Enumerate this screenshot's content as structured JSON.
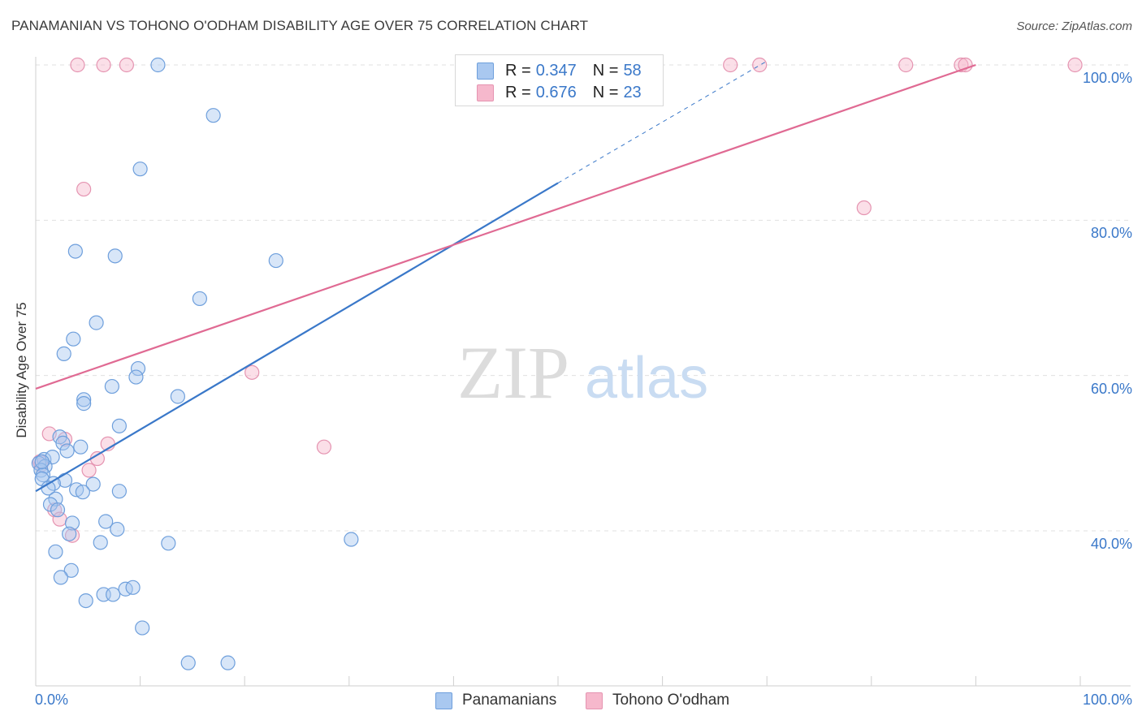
{
  "title": "PANAMANIAN VS TOHONO O'ODHAM DISABILITY AGE OVER 75 CORRELATION CHART",
  "source": "Source: ZipAtlas.com",
  "watermark": {
    "zip": "ZIP",
    "atlas": "atlas"
  },
  "legend": {
    "row1": {
      "r_label": "R =",
      "r_value": "0.347",
      "n_label": "N =",
      "n_value": "58"
    },
    "row2": {
      "r_label": "R =",
      "r_value": "0.676",
      "n_label": "N =",
      "n_value": "23"
    }
  },
  "bottom_legend": {
    "series1": "Panamanians",
    "series2": "Tohono O'odham"
  },
  "chart_data": {
    "type": "scatter",
    "title": "PANAMANIAN VS TOHONO O'ODHAM DISABILITY AGE OVER 75 CORRELATION CHART",
    "xlabel": "",
    "ylabel": "Disability Age Over 75",
    "xlim": [
      0,
      100
    ],
    "ylim": [
      22.5,
      102
    ],
    "x_tick_labels": [
      "0.0%",
      "100.0%"
    ],
    "y_tick_labels": [
      "40.0%",
      "60.0%",
      "80.0%",
      "100.0%"
    ],
    "y_ticks": [
      40,
      60,
      80,
      100
    ],
    "grid": true,
    "legend_position": "top-center",
    "colors": {
      "blue": "#3a78c9",
      "pink": "#e06a93",
      "blue_fill": "#a9c8f0",
      "pink_fill": "#f6b8cc"
    },
    "series": [
      {
        "name": "Panamanians",
        "color": "#3a78c9",
        "r": 0.347,
        "n": 58,
        "trend": {
          "x": [
            0,
            50
          ],
          "y": [
            45.1,
            84.8
          ],
          "dashed_to": {
            "x": 70,
            "y": 100.5
          }
        },
        "points": [
          [
            11.7,
            100
          ],
          [
            41.7,
            100
          ],
          [
            17,
            93.5
          ],
          [
            10,
            86.6
          ],
          [
            3.8,
            76
          ],
          [
            7.6,
            75.4
          ],
          [
            23,
            74.8
          ],
          [
            15.7,
            69.9
          ],
          [
            5.8,
            66.8
          ],
          [
            3.6,
            64.7
          ],
          [
            2.7,
            62.8
          ],
          [
            9.8,
            60.9
          ],
          [
            9.6,
            59.8
          ],
          [
            7.3,
            58.6
          ],
          [
            13.6,
            57.3
          ],
          [
            4.6,
            56.9
          ],
          [
            4.6,
            56.4
          ],
          [
            8,
            53.5
          ],
          [
            2.3,
            52.1
          ],
          [
            2.6,
            51.3
          ],
          [
            4.3,
            50.8
          ],
          [
            3,
            50.3
          ],
          [
            0.8,
            49.2
          ],
          [
            1.6,
            49.5
          ],
          [
            0.3,
            48.7
          ],
          [
            0.9,
            48.3
          ],
          [
            0.5,
            47.8
          ],
          [
            0.7,
            47.2
          ],
          [
            0.6,
            46.7
          ],
          [
            2.8,
            46.5
          ],
          [
            1.7,
            46.1
          ],
          [
            5.5,
            46
          ],
          [
            1.2,
            45.5
          ],
          [
            3.9,
            45.3
          ],
          [
            4.5,
            45
          ],
          [
            8,
            45.1
          ],
          [
            1.9,
            44.1
          ],
          [
            1.4,
            43.4
          ],
          [
            2.1,
            42.7
          ],
          [
            3.5,
            41
          ],
          [
            6.7,
            41.2
          ],
          [
            7.8,
            40.2
          ],
          [
            3.2,
            39.6
          ],
          [
            6.2,
            38.5
          ],
          [
            12.7,
            38.4
          ],
          [
            30.2,
            38.9
          ],
          [
            1.9,
            37.3
          ],
          [
            3.4,
            34.9
          ],
          [
            2.4,
            34
          ],
          [
            4.8,
            31
          ],
          [
            6.5,
            31.8
          ],
          [
            7.4,
            31.8
          ],
          [
            8.6,
            32.5
          ],
          [
            9.3,
            32.7
          ],
          [
            10.2,
            27.5
          ],
          [
            14.6,
            23
          ],
          [
            18.4,
            23
          ],
          [
            0.6,
            48.9
          ]
        ]
      },
      {
        "name": "Tohono O'odham",
        "color": "#e06a93",
        "r": 0.676,
        "n": 23,
        "trend": {
          "x": [
            0,
            90
          ],
          "y": [
            58.3,
            100
          ]
        },
        "points": [
          [
            4,
            100
          ],
          [
            6.5,
            100
          ],
          [
            8.7,
            100
          ],
          [
            66.5,
            100
          ],
          [
            69.3,
            100
          ],
          [
            83.3,
            100
          ],
          [
            88.6,
            100
          ],
          [
            89,
            100
          ],
          [
            99.5,
            100
          ],
          [
            4.6,
            84
          ],
          [
            79.3,
            81.6
          ],
          [
            20.7,
            60.4
          ],
          [
            1.3,
            52.5
          ],
          [
            2.8,
            51.8
          ],
          [
            6.9,
            51.2
          ],
          [
            27.6,
            50.8
          ],
          [
            5.9,
            49.3
          ],
          [
            5.1,
            47.8
          ],
          [
            0.5,
            48.5
          ],
          [
            1.8,
            42.7
          ],
          [
            2.3,
            41.5
          ],
          [
            3.5,
            39.4
          ],
          [
            0.4,
            48.9
          ]
        ]
      }
    ]
  }
}
